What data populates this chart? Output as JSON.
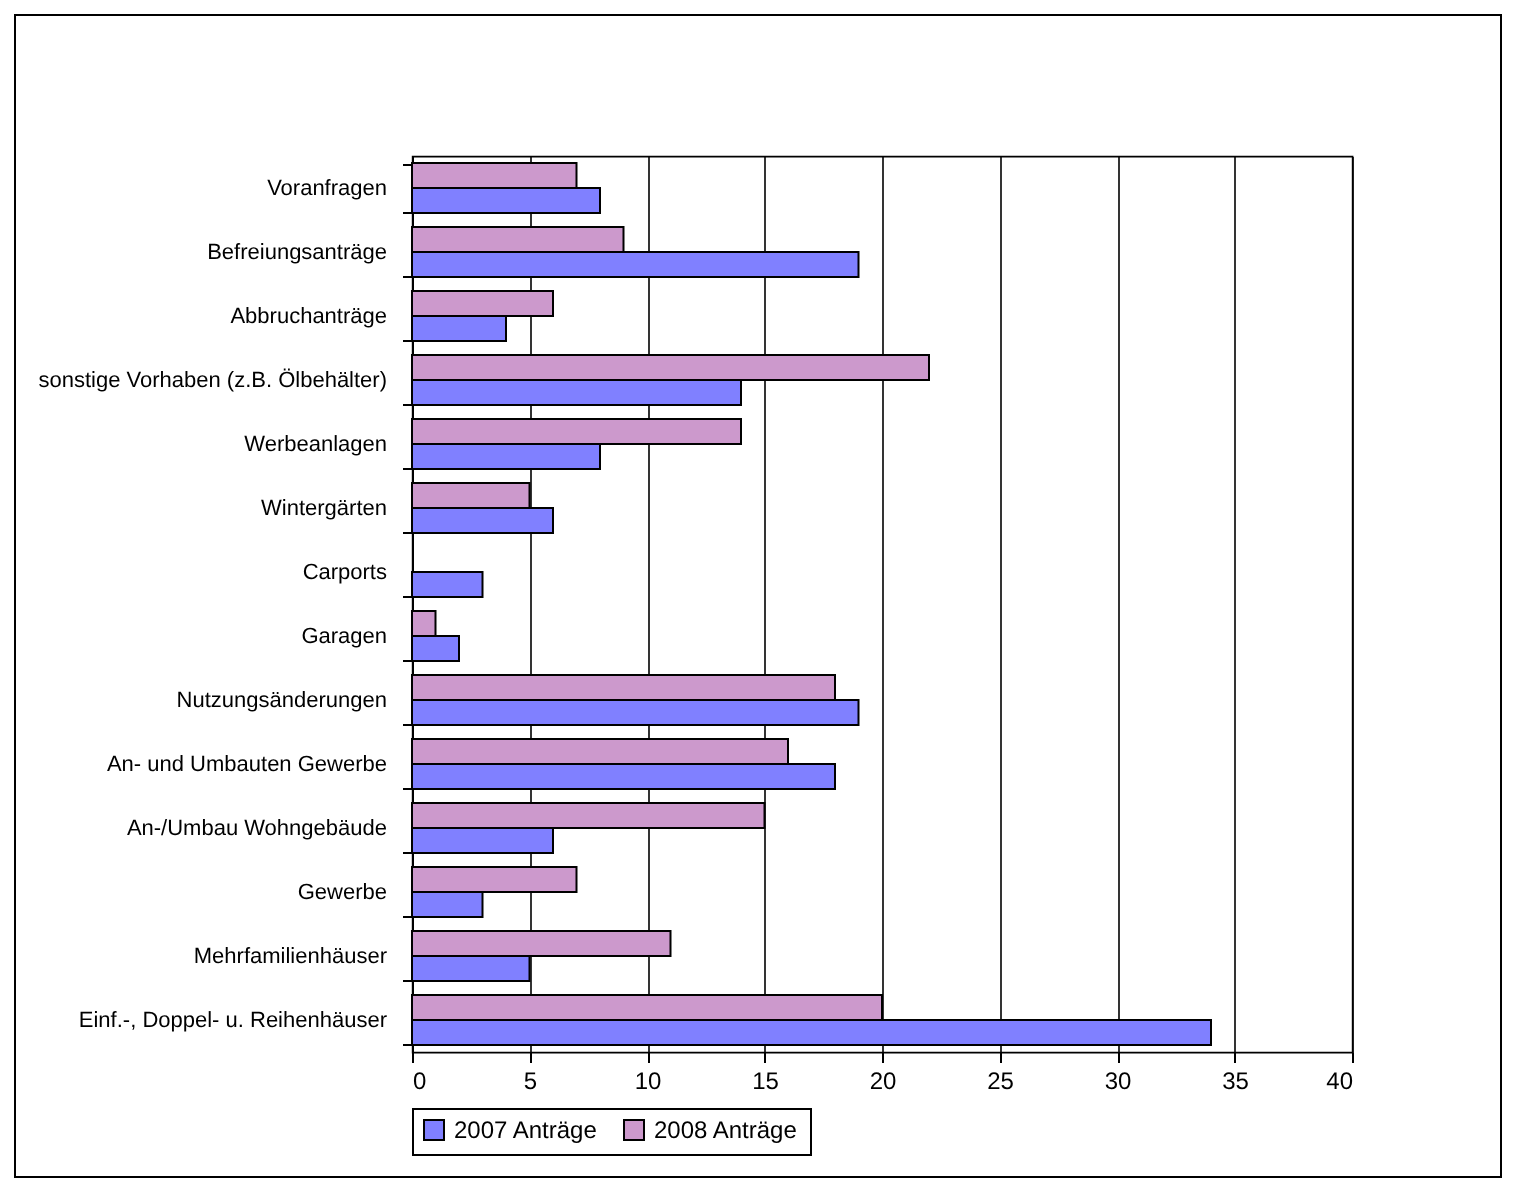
{
  "chart_data": {
    "type": "bar",
    "orientation": "horizontal",
    "categories": [
      "Voranfragen",
      "Befreiungsanträge",
      "Abbruchanträge",
      "sonstige Vorhaben (z.B. Ölbehälter)",
      "Werbeanlagen",
      "Wintergärten",
      "Carports",
      "Garagen",
      "Nutzungsänderungen",
      "An- und Umbauten Gewerbe",
      "An-/Umbau Wohngebäude",
      "Gewerbe",
      "Mehrfamilienhäuser",
      "Einf.-, Doppel- u. Reihenhäuser"
    ],
    "series": [
      {
        "name": "2007 Anträge",
        "color": "#8080ff",
        "values": [
          8,
          19,
          4,
          14,
          8,
          6,
          3,
          2,
          19,
          18,
          6,
          3,
          5,
          34
        ]
      },
      {
        "name": "2008 Anträge",
        "color": "#cc99cc",
        "values": [
          7,
          9,
          6,
          22,
          14,
          5,
          null,
          1,
          18,
          16,
          15,
          7,
          11,
          20
        ]
      }
    ],
    "xlim": [
      0,
      40
    ],
    "xticks": [
      0,
      5,
      10,
      15,
      20,
      25,
      30,
      35,
      40
    ],
    "grid": "x",
    "legend": "bottom"
  }
}
